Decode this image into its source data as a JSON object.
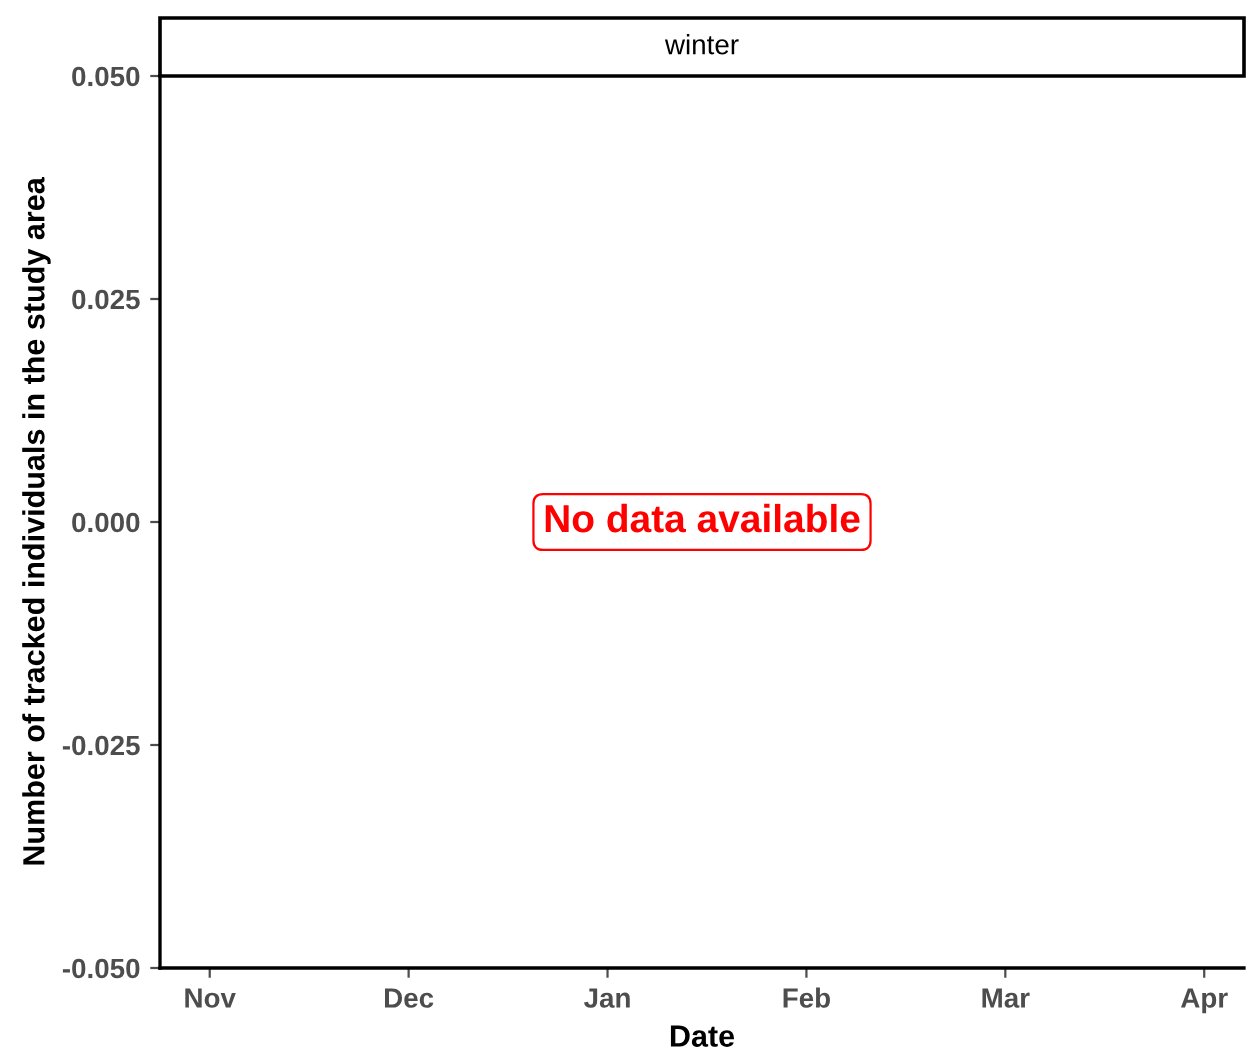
{
  "chart_data": {
    "type": "line",
    "title": "winter",
    "xlabel": "Date",
    "ylabel": "Number of tracked individuals in the study area",
    "categories": [
      "Nov",
      "Dec",
      "Jan",
      "Feb",
      "Mar",
      "Apr"
    ],
    "ylim": [
      -0.05,
      0.05
    ],
    "yticks": [
      {
        "value": -0.05,
        "label": "-0.050"
      },
      {
        "value": -0.025,
        "label": "-0.025"
      },
      {
        "value": 0,
        "label": "0.000"
      },
      {
        "value": 0.025,
        "label": "0.025"
      },
      {
        "value": 0.05,
        "label": "0.050"
      }
    ],
    "annotations": [
      "No data available"
    ],
    "grid": false,
    "legend": false
  }
}
